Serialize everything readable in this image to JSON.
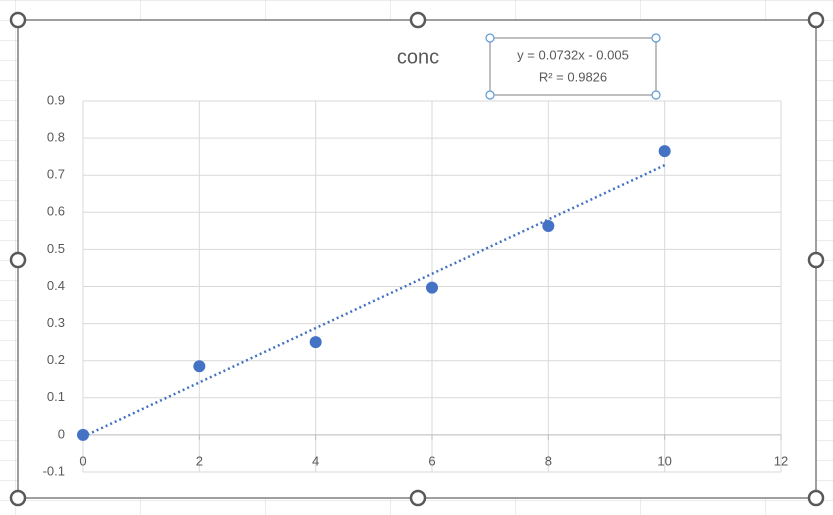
{
  "chart_data": {
    "type": "scatter",
    "title": "conc",
    "x": [
      0,
      2,
      4,
      6,
      8,
      10
    ],
    "series": [
      {
        "color": "#4472c4",
        "values": [
          0,
          0.185,
          0.25,
          0.397,
          0.563,
          0.765
        ]
      }
    ],
    "trendline": {
      "slope": 0.0732,
      "intercept": -0.005,
      "equation_label": "y = 0.0732x - 0.005",
      "r_squared_label": "R² = 0.9826"
    },
    "xlim": [
      0,
      12
    ],
    "xticks": [
      0,
      2,
      4,
      6,
      8,
      10,
      12
    ],
    "ylim": [
      -0.1,
      0.9
    ],
    "yticks": [
      -0.1,
      0,
      0.1,
      0.2,
      0.3,
      0.4,
      0.5,
      0.6,
      0.7,
      0.8,
      0.9
    ],
    "grid": true
  }
}
